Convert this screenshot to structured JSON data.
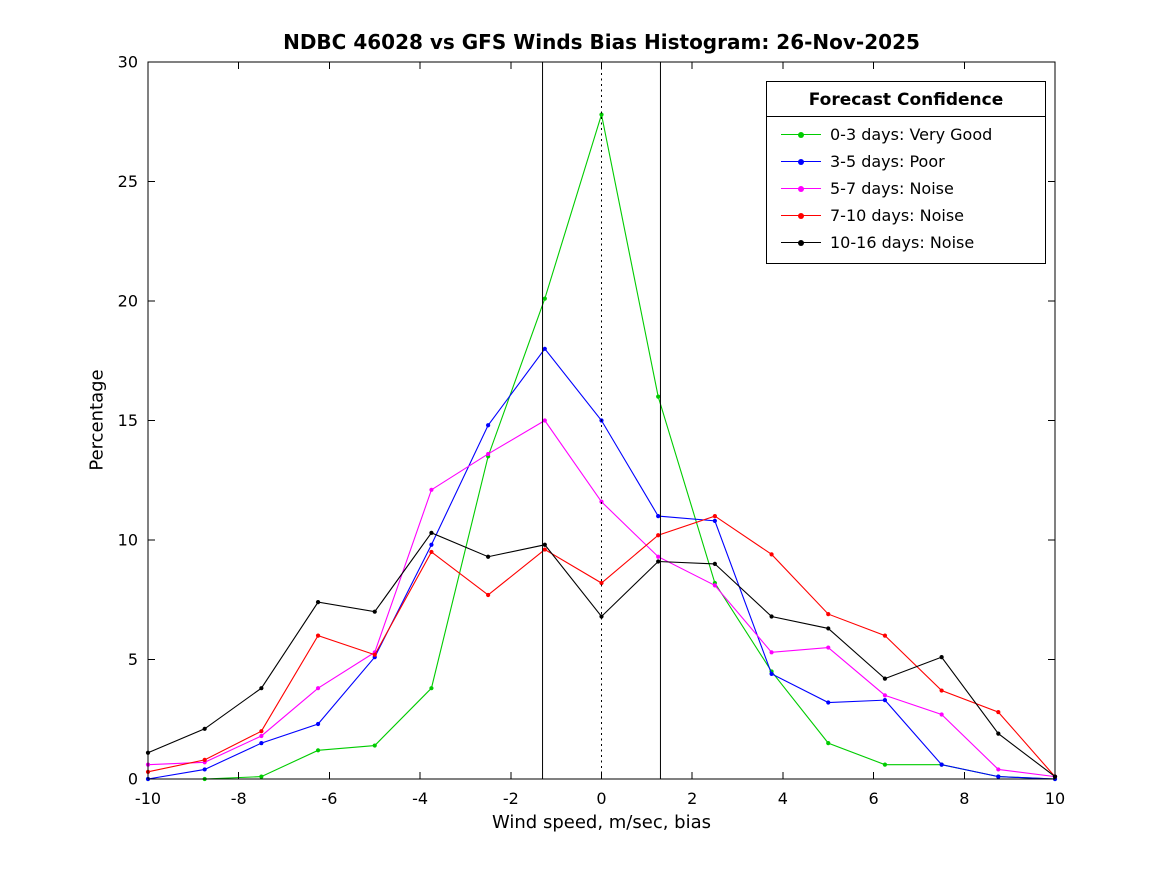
{
  "chart_data": {
    "type": "line",
    "title": "NDBC 46028 vs GFS Winds Bias Histogram: 26-Nov-2025",
    "xlabel": "Wind speed, m/sec, bias",
    "ylabel": "Percentage",
    "xlim": [
      -10,
      10
    ],
    "ylim": [
      0,
      30
    ],
    "xticks": [
      -10,
      -8,
      -6,
      -4,
      -2,
      0,
      2,
      4,
      6,
      8,
      10
    ],
    "yticks": [
      0,
      5,
      10,
      15,
      20,
      25,
      30
    ],
    "grid": false,
    "x": [
      -10,
      -8.75,
      -7.5,
      -6.25,
      -5,
      -3.75,
      -2.5,
      -1.25,
      0,
      1.25,
      2.5,
      3.75,
      5,
      6.25,
      7.5,
      8.75,
      10
    ],
    "series": [
      {
        "name": "0-3 days: Very Good",
        "color": "#00cc00",
        "values": [
          0,
          0,
          0.1,
          1.2,
          1.4,
          3.8,
          13.5,
          20.1,
          27.8,
          16.0,
          8.2,
          4.5,
          1.5,
          0.6,
          0.6,
          0.1,
          0
        ]
      },
      {
        "name": "3-5 days: Poor",
        "color": "#0000ff",
        "values": [
          0,
          0.4,
          1.5,
          2.3,
          5.1,
          9.8,
          14.8,
          18.0,
          15.0,
          11.0,
          10.8,
          4.4,
          3.2,
          3.3,
          0.6,
          0.1,
          0
        ]
      },
      {
        "name": "5-7 days: Noise",
        "color": "#ff00ff",
        "values": [
          0.6,
          0.7,
          1.8,
          3.8,
          5.3,
          12.1,
          13.6,
          15.0,
          11.6,
          9.3,
          8.1,
          5.3,
          5.5,
          3.5,
          2.7,
          0.4,
          0.1
        ]
      },
      {
        "name": "7-10 days: Noise",
        "color": "#ff0000",
        "values": [
          0.3,
          0.8,
          2.0,
          6.0,
          5.2,
          9.5,
          7.7,
          9.6,
          8.2,
          10.2,
          11.0,
          9.4,
          6.9,
          6.0,
          3.7,
          2.8,
          0.1
        ]
      },
      {
        "name": "10-16 days: Noise",
        "color": "#000000",
        "values": [
          1.1,
          2.1,
          3.8,
          7.4,
          7.0,
          10.3,
          9.3,
          9.8,
          6.8,
          9.1,
          9.0,
          6.8,
          6.3,
          4.2,
          5.1,
          1.9,
          0.1
        ]
      }
    ],
    "reference_lines": [
      {
        "x": -1.3,
        "style": "solid",
        "color": "#000000"
      },
      {
        "x": 0,
        "style": "dotted",
        "color": "#000000"
      },
      {
        "x": 1.3,
        "style": "solid",
        "color": "#000000"
      }
    ],
    "legend": {
      "title": "Forecast Confidence",
      "position": "top-right"
    }
  }
}
